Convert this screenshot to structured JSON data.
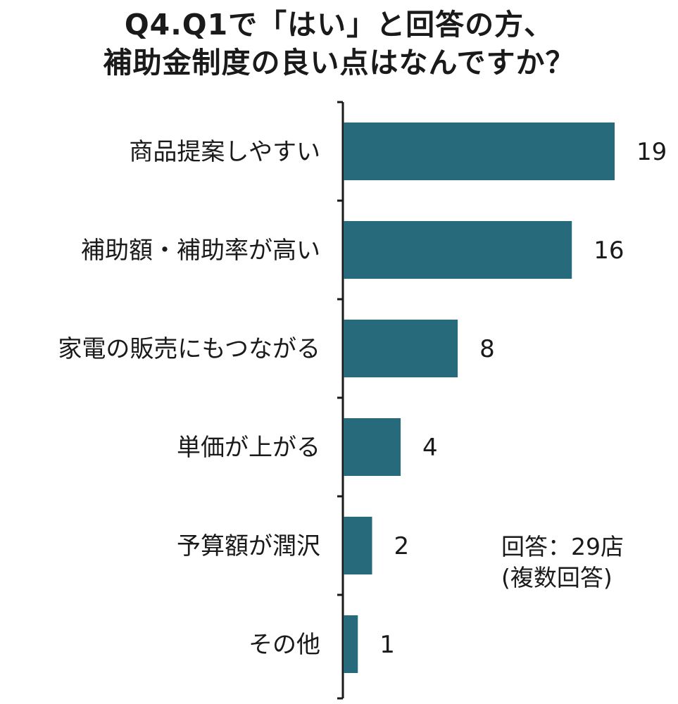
{
  "title": {
    "line1": "Q4.Q1で「はい」と回答の方、",
    "line2": "補助金制度の良い点はなんですか？"
  },
  "note": {
    "line1": "回答：29店",
    "line2": "(複数回答)"
  },
  "chart_data": {
    "type": "bar",
    "orientation": "horizontal",
    "categories": [
      "商品提案しやすい",
      "補助額・補助率が高い",
      "家電の販売にもつながる",
      "単価が上がる",
      "予算額が潤沢",
      "その他"
    ],
    "values": [
      19,
      16,
      8,
      4,
      2,
      1
    ],
    "value_labels": [
      "19",
      "16",
      "8",
      "4",
      "2",
      "1"
    ],
    "bar_color": "#276a7b",
    "xlim": [
      0,
      19
    ],
    "grid": false,
    "legend": "none"
  }
}
